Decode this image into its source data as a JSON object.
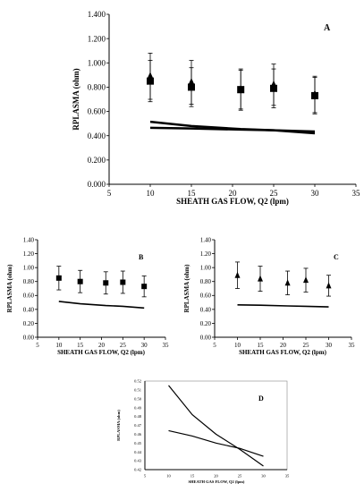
{
  "chart_data": [
    {
      "type": "scatter",
      "panel_label": "A",
      "xlabel": "SHEATH  GAS FLOW, Q2 (lpm)",
      "ylabel": "RPLASMA (ohm)",
      "xlim": [
        5,
        35
      ],
      "ylim": [
        0,
        1.4
      ],
      "x_ticks": [
        "5",
        "10",
        "15",
        "20",
        "25",
        "30",
        "35"
      ],
      "y_ticks": [
        "0.000",
        "0.200",
        "0.400",
        "0.600",
        "0.800",
        "1.000",
        "1.200",
        "1.400"
      ],
      "series": [
        {
          "marker": "square",
          "x": [
            10,
            15,
            21,
            25,
            30
          ],
          "y": [
            0.85,
            0.8,
            0.78,
            0.79,
            0.73
          ],
          "err": [
            0.17,
            0.16,
            0.16,
            0.16,
            0.15
          ]
        },
        {
          "marker": "triangle",
          "x": [
            10,
            15,
            21,
            25,
            30
          ],
          "y": [
            0.89,
            0.84,
            0.78,
            0.82,
            0.74
          ],
          "err": [
            0.19,
            0.18,
            0.17,
            0.17,
            0.15
          ]
        },
        {
          "marker": "line",
          "x": [
            10,
            15,
            21,
            25,
            30
          ],
          "y": [
            0.515,
            0.48,
            0.455,
            0.445,
            0.42
          ]
        },
        {
          "marker": "line",
          "x": [
            10,
            15,
            21,
            25,
            30
          ],
          "y": [
            0.465,
            0.46,
            0.45,
            0.445,
            0.435
          ]
        }
      ]
    },
    {
      "type": "scatter",
      "panel_label": "B",
      "xlabel": "SHEATH  GAS FLOW, Q2 (lpm)",
      "ylabel": "RPLASMA (ohm)",
      "xlim": [
        5,
        35
      ],
      "ylim": [
        0,
        1.4
      ],
      "x_ticks": [
        "5",
        "10",
        "15",
        "20",
        "25",
        "30",
        "35"
      ],
      "y_ticks": [
        "0.00",
        "0.20",
        "0.40",
        "0.60",
        "0.80",
        "1.00",
        "1.20",
        "1.40"
      ],
      "series": [
        {
          "marker": "square",
          "x": [
            10,
            15,
            21,
            25,
            30
          ],
          "y": [
            0.85,
            0.8,
            0.78,
            0.79,
            0.73
          ],
          "err": [
            0.17,
            0.16,
            0.16,
            0.16,
            0.15
          ]
        },
        {
          "marker": "line",
          "x": [
            10,
            15,
            21,
            25,
            30
          ],
          "y": [
            0.515,
            0.48,
            0.455,
            0.445,
            0.42
          ]
        }
      ]
    },
    {
      "type": "scatter",
      "panel_label": "C",
      "xlabel": "SHEATH  GAS FLOW, Q2 (lpm)",
      "ylabel": "RPLASMA (ohm)",
      "xlim": [
        5,
        35
      ],
      "ylim": [
        0,
        1.4
      ],
      "x_ticks": [
        "5",
        "10",
        "15",
        "20",
        "25",
        "30",
        "35"
      ],
      "y_ticks": [
        "0.00",
        "0.20",
        "0.40",
        "0.60",
        "0.80",
        "1.00",
        "1.20",
        "1.40"
      ],
      "series": [
        {
          "marker": "triangle",
          "x": [
            10,
            15,
            21,
            25,
            30
          ],
          "y": [
            0.89,
            0.84,
            0.78,
            0.82,
            0.74
          ],
          "err": [
            0.19,
            0.18,
            0.17,
            0.17,
            0.15
          ]
        },
        {
          "marker": "line",
          "x": [
            10,
            15,
            21,
            25,
            30
          ],
          "y": [
            0.465,
            0.46,
            0.45,
            0.445,
            0.435
          ]
        }
      ]
    },
    {
      "type": "line",
      "panel_label": "D",
      "xlabel": "SHEATH GAS FLOW, Q2 (lpm)",
      "ylabel": "RPLASMA (ohm)",
      "xlim": [
        5,
        35
      ],
      "ylim": [
        0.42,
        0.52
      ],
      "x_ticks": [
        "5",
        "10",
        "15",
        "20",
        "25",
        "30",
        "35"
      ],
      "y_ticks": [
        "0.42",
        "0.43",
        "0.44",
        "0.45",
        "0.46",
        "0.47",
        "0.48",
        "0.49",
        "0.50",
        "0.51",
        "0.52"
      ],
      "series": [
        {
          "marker": "line",
          "x": [
            10,
            15,
            20,
            25,
            30
          ],
          "y": [
            0.515,
            0.482,
            0.46,
            0.443,
            0.424
          ]
        },
        {
          "marker": "line",
          "x": [
            10,
            15,
            20,
            25,
            30
          ],
          "y": [
            0.464,
            0.458,
            0.45,
            0.444,
            0.435
          ]
        }
      ]
    }
  ]
}
